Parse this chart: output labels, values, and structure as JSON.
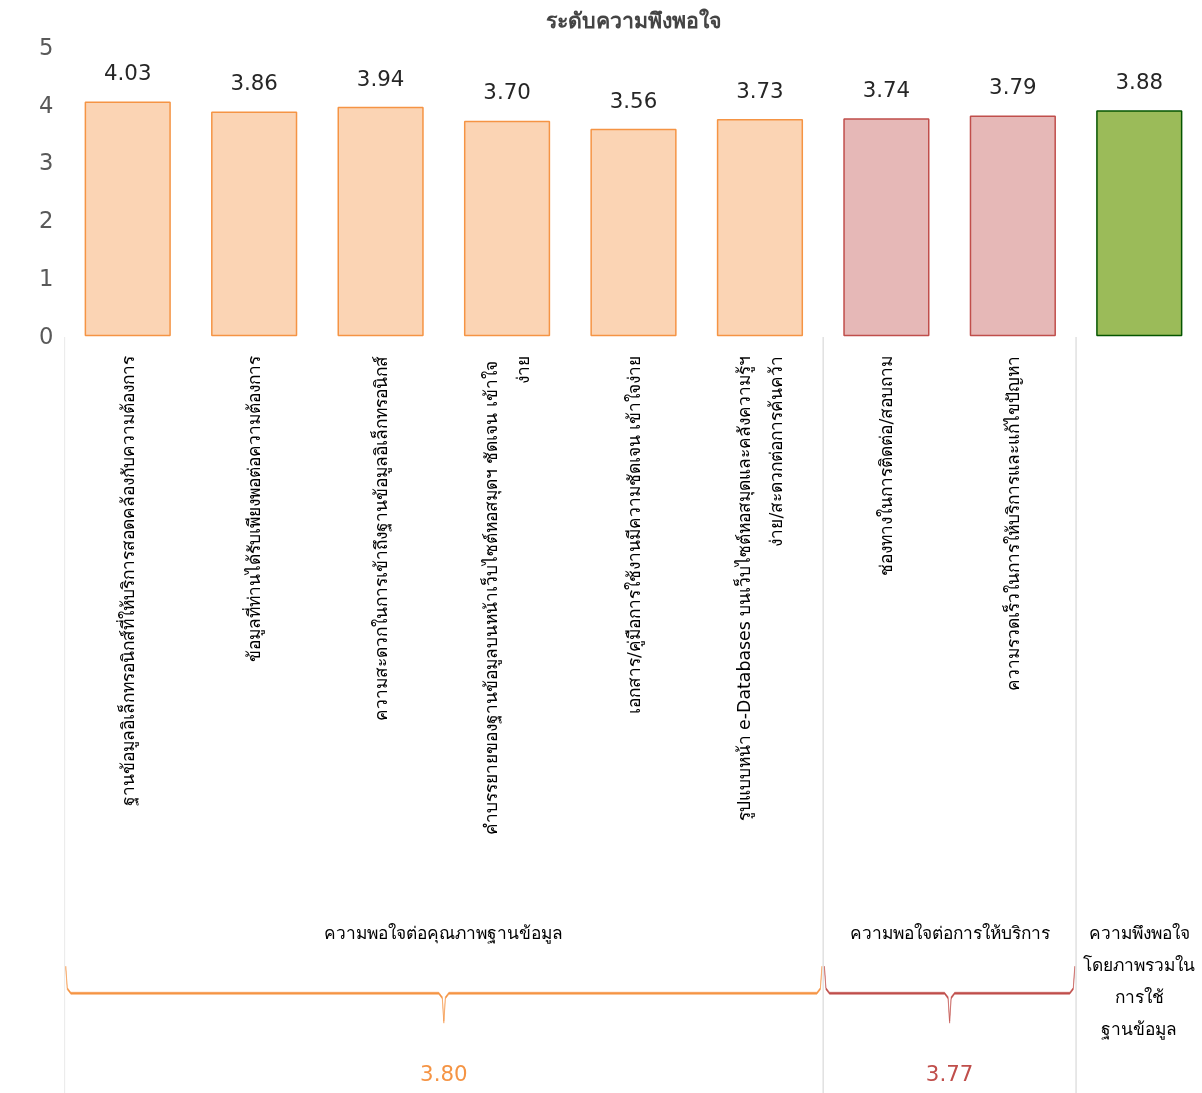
{
  "chart_data": {
    "type": "bar",
    "title": "ระดับความพึงพอใจ",
    "categories": [
      "ฐานข้อมูลอิเล็กทรอนิกส์ที่ให้บริการสอดคล้องกับความต้องการ",
      "ข้อมูลที่ท่านได้รับเพียงพอต่อความต้องการ",
      "ความสะดวกในการเข้าถึงฐานข้อมูลอิเล็กทรอนิกส์",
      "คำบรรยายของฐานข้อมูลบนหน้าเว็บไซต์หอสมุดฯ ชัดเจน  เข้าใจ\nง่าย",
      "เอกสาร/คู่มือการใช้งานมีความชัดเจน เข้าใจง่าย",
      "รูปแบบหน้า e-Databases บนเว็บไซต์หอสมุดและคลังความรู้ฯ\nง่าย/สะดวกต่อการค้นคว้า",
      "ช่องทางในการติดต่อ/สอบถาม",
      "ความรวดเร็วในการให้บริการและแก้ไขปัญหา",
      null
    ],
    "values": [
      4.03,
      3.86,
      3.94,
      3.7,
      3.56,
      3.73,
      3.74,
      3.79,
      3.88
    ],
    "value_labels": [
      "4.03",
      "3.86",
      "3.94",
      "3.70",
      "3.56",
      "3.73",
      "3.74",
      "3.79",
      "3.88"
    ],
    "colors": [
      "#fbd4b4",
      "#fbd4b4",
      "#fbd4b4",
      "#fbd4b4",
      "#fbd4b4",
      "#fbd4b4",
      "#e6b8b7",
      "#e6b8b7",
      "#9bbb59"
    ],
    "ylim": [
      0,
      5
    ],
    "yticks": [
      0,
      1,
      2,
      3,
      4,
      5
    ],
    "annotations": [
      "ความพอใจต่อคุณภาพฐานข้อมูล",
      "ความพอใจต่อการให้บริการ",
      "ความพึงพอใจ\nโดยภาพรวมใน\nการใช้\nฐานข้อมูล",
      "3.80",
      "3.77"
    ]
  }
}
